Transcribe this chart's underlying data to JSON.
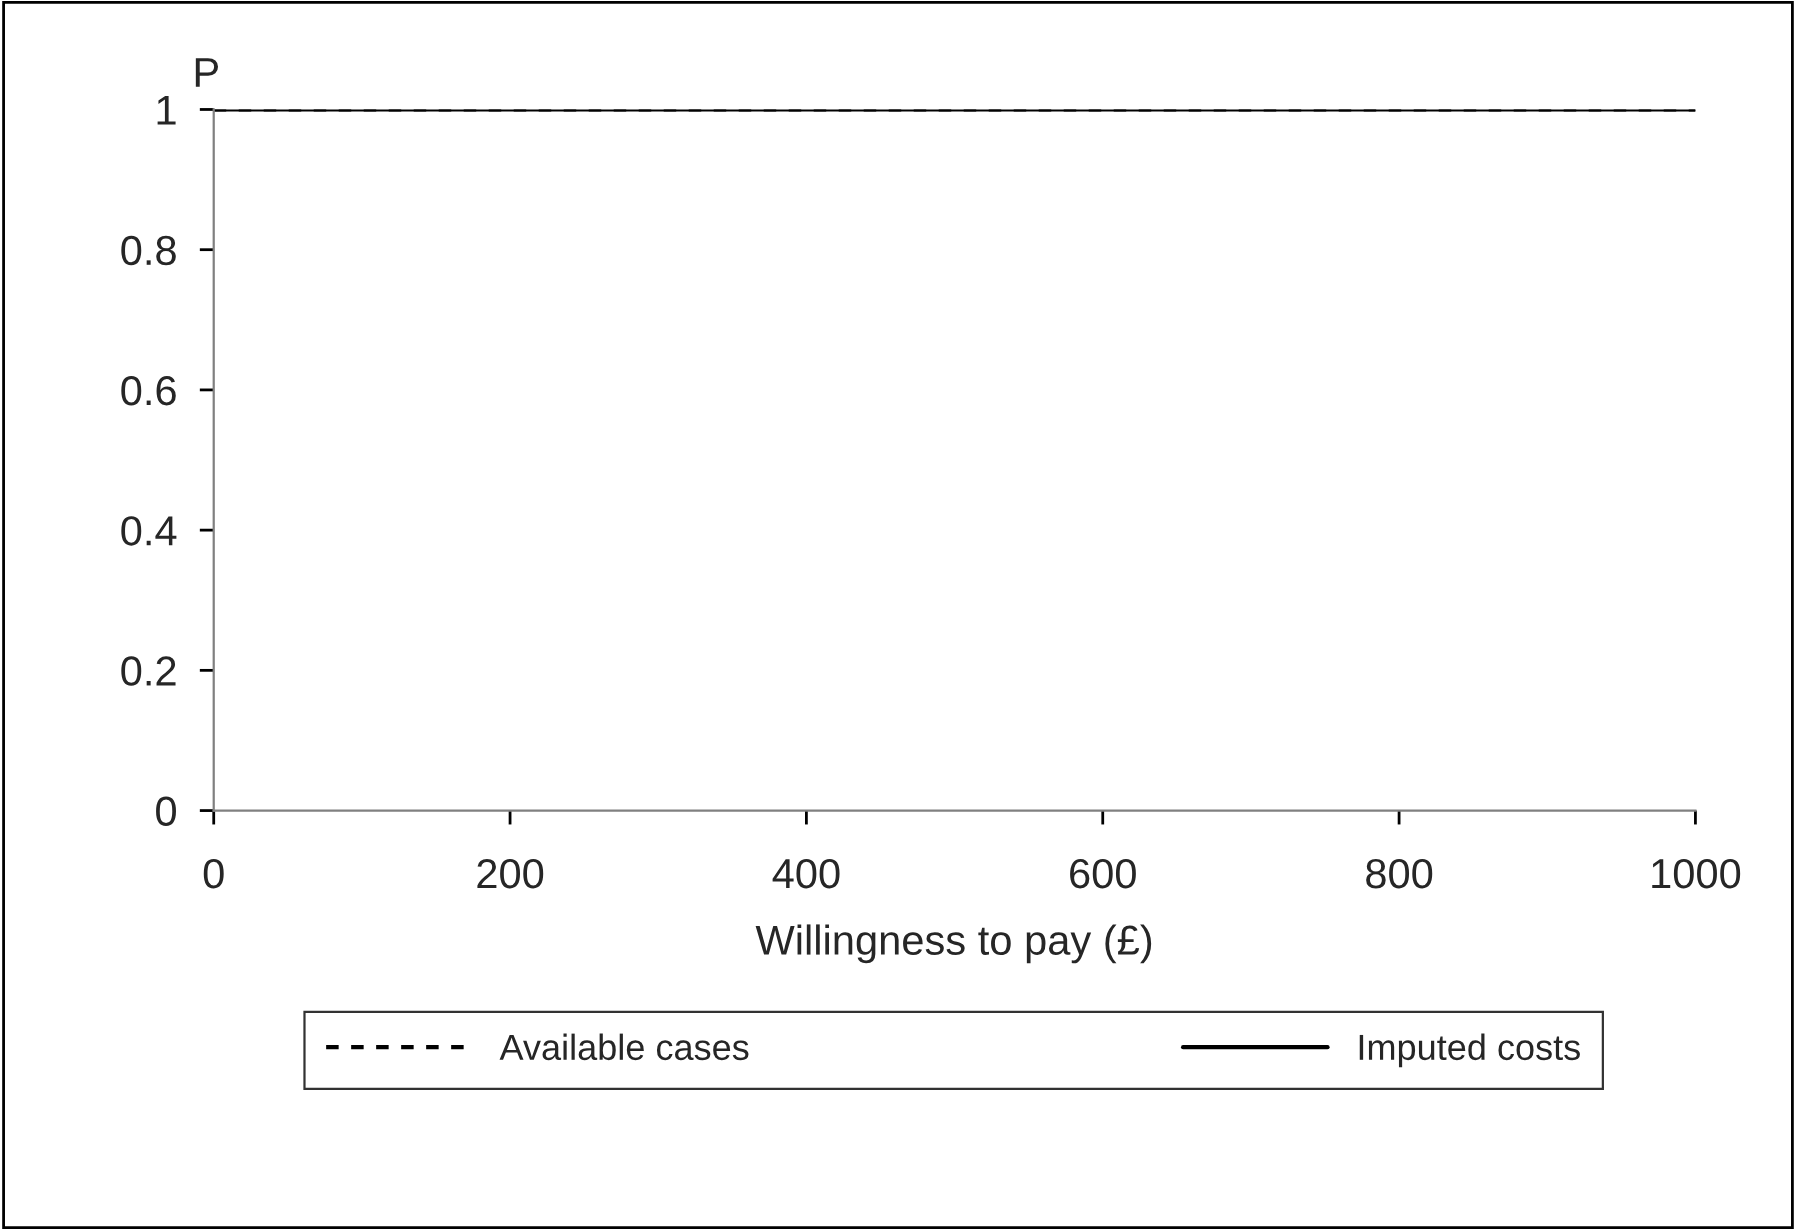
{
  "chart_data": {
    "type": "line",
    "xlabel": "Willingness to pay (£)",
    "ylabel": "P",
    "x": [
      0,
      1000
    ],
    "series": [
      {
        "name": "Available cases",
        "color": "#000000",
        "values": [
          1,
          1
        ],
        "line_style": "dashed"
      },
      {
        "name": "Imputed costs",
        "color": "#000000",
        "values": [
          1,
          1
        ],
        "line_style": "solid"
      }
    ],
    "xlim": [
      0,
      1000
    ],
    "xticks": [
      0,
      200,
      400,
      600,
      800,
      1000
    ],
    "ylim": [
      0,
      1
    ],
    "yticks": [
      0,
      0.2,
      0.4,
      0.6,
      0.8,
      1
    ],
    "grid": false,
    "legend": "bottom",
    "marker": "none"
  }
}
